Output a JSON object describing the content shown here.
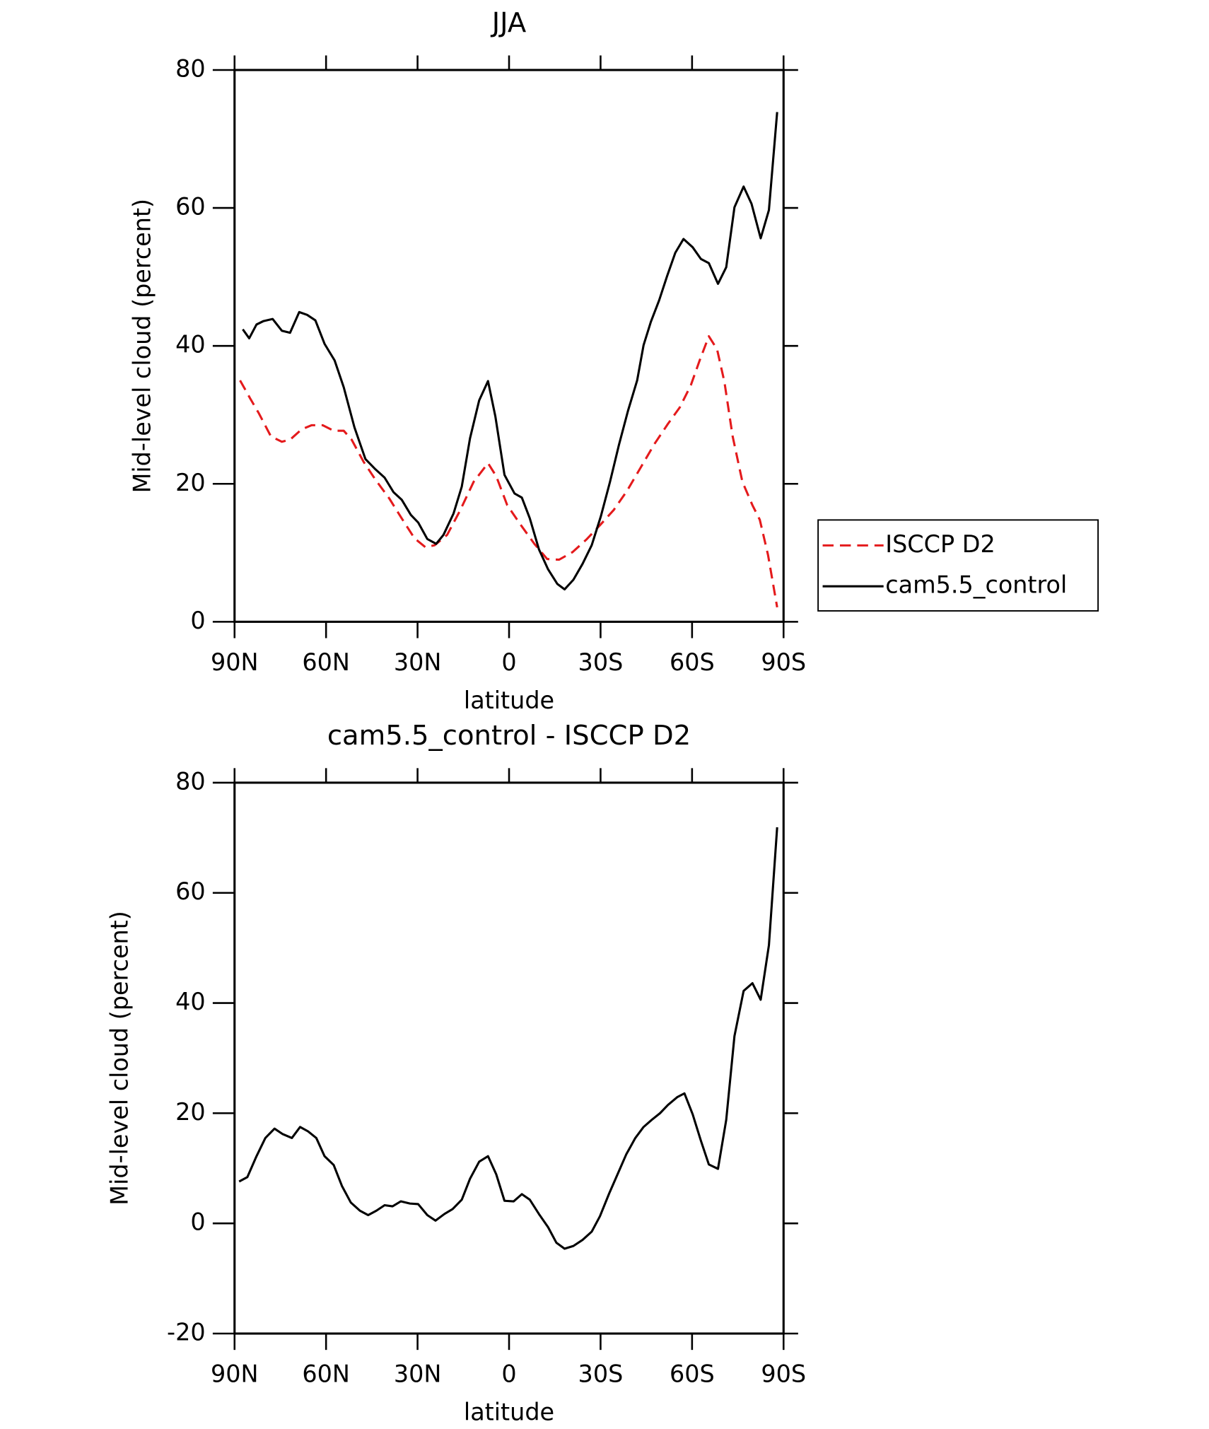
{
  "chart_data": [
    {
      "type": "line",
      "title": "JJA",
      "xlabel": "latitude",
      "ylabel": "Mid-level cloud (percent)",
      "xlim": [
        90,
        -90
      ],
      "xticks": [
        {
          "value": 90,
          "label": "90N"
        },
        {
          "value": 60,
          "label": "60N"
        },
        {
          "value": 30,
          "label": "30N"
        },
        0,
        {
          "value": -30,
          "label": "30S"
        },
        {
          "value": -60,
          "label": "60S"
        },
        {
          "value": -90,
          "label": "90S"
        }
      ],
      "ylim": [
        0,
        80
      ],
      "yticks": [
        0,
        20,
        40,
        60,
        80
      ],
      "legend": "right",
      "series": [
        {
          "name": "ISCCP D2",
          "color": "#e41a1c",
          "line_style": "dashed",
          "x": [
            88.2,
            84.9,
            82.0,
            78.1,
            74.5,
            71.8,
            68.0,
            64.7,
            61.1,
            57.5,
            54.2,
            51.6,
            47.7,
            43.8,
            39.3,
            35.2,
            31.0,
            27.4,
            24.4,
            20.3,
            16.1,
            11.6,
            6.9,
            4.2,
            0.6,
            -3.9,
            -8.3,
            -12.5,
            -16.4,
            -20.8,
            -25.3,
            -29.8,
            -34.3,
            -38.7,
            -43.2,
            -47.7,
            -52.1,
            -56.0,
            -59.6,
            -62.5,
            -65.5,
            -68.2,
            -70.6,
            -73.3,
            -76.5,
            -79.8,
            -82.2,
            -84.9,
            -87.9
          ],
          "values": [
            35.0,
            32.4,
            30.2,
            26.9,
            26.1,
            26.4,
            27.9,
            28.5,
            28.5,
            27.7,
            27.7,
            26.4,
            23.2,
            20.6,
            17.9,
            15.0,
            12.1,
            10.8,
            11.1,
            12.6,
            16.1,
            20.3,
            23.0,
            21.1,
            16.9,
            14.0,
            11.3,
            9.1,
            9.0,
            10.1,
            11.9,
            14.0,
            16.2,
            19.0,
            22.4,
            25.8,
            28.7,
            31.1,
            34.3,
            37.9,
            41.4,
            39.5,
            34.8,
            26.9,
            20.3,
            16.9,
            14.8,
            9.7,
            2.1
          ]
        },
        {
          "name": "cam5.5_control",
          "color": "#000000",
          "line_style": "solid",
          "x": [
            87.3,
            85.2,
            82.8,
            80.5,
            77.5,
            74.5,
            71.8,
            68.8,
            66.2,
            63.5,
            60.5,
            57.2,
            54.2,
            50.7,
            47.1,
            43.8,
            40.8,
            37.9,
            35.2,
            32.2,
            29.8,
            26.8,
            23.9,
            21.5,
            18.2,
            15.5,
            12.8,
            9.8,
            6.9,
            4.5,
            1.5,
            -1.8,
            -4.2,
            -6.8,
            -9.8,
            -12.8,
            -15.8,
            -18.2,
            -21.1,
            -24.1,
            -27.1,
            -30.1,
            -33.1,
            -36.0,
            -39.0,
            -42.0,
            -44.1,
            -46.5,
            -49.2,
            -51.8,
            -54.5,
            -57.2,
            -60.2,
            -62.9,
            -65.5,
            -68.5,
            -71.2,
            -73.9,
            -76.9,
            -79.5,
            -82.5,
            -85.2,
            -87.9
          ],
          "values": [
            42.4,
            41.1,
            43.1,
            43.6,
            43.9,
            42.2,
            41.9,
            44.9,
            44.5,
            43.7,
            40.3,
            37.9,
            34.0,
            28.2,
            23.6,
            22.1,
            20.9,
            18.8,
            17.7,
            15.5,
            14.4,
            12.0,
            11.3,
            12.6,
            15.7,
            19.6,
            26.6,
            32.1,
            34.9,
            29.8,
            21.3,
            18.6,
            18.0,
            15.0,
            10.5,
            7.6,
            5.5,
            4.7,
            6.1,
            8.4,
            11.1,
            15.3,
            20.3,
            25.6,
            30.6,
            35.0,
            40.1,
            43.5,
            46.6,
            50.1,
            53.5,
            55.5,
            54.3,
            52.6,
            52.0,
            49.0,
            51.4,
            60.1,
            63.1,
            60.6,
            55.6,
            59.7,
            73.9
          ]
        }
      ]
    },
    {
      "type": "line",
      "title": "cam5.5_control - ISCCP D2",
      "xlabel": "latitude",
      "ylabel": "Mid-level cloud (percent)",
      "xlim": [
        90,
        -90
      ],
      "xticks": [
        {
          "value": 90,
          "label": "90N"
        },
        {
          "value": 60,
          "label": "60N"
        },
        {
          "value": 30,
          "label": "30N"
        },
        0,
        {
          "value": -30,
          "label": "30S"
        },
        {
          "value": -60,
          "label": "60S"
        },
        {
          "value": -90,
          "label": "90S"
        }
      ],
      "ylim": [
        -20,
        80
      ],
      "yticks": [
        -20,
        0,
        20,
        40,
        60,
        80
      ],
      "color": "#000000",
      "x": [
        88.5,
        85.8,
        82.8,
        79.9,
        76.9,
        74.2,
        71.2,
        68.5,
        65.9,
        63.2,
        60.5,
        57.5,
        54.8,
        51.9,
        48.9,
        46.2,
        43.5,
        40.8,
        38.2,
        35.5,
        32.5,
        29.8,
        26.8,
        24.1,
        21.2,
        18.5,
        15.5,
        12.8,
        9.8,
        6.9,
        4.2,
        1.5,
        -1.5,
        -4.2,
        -6.8,
        -9.8,
        -12.8,
        -15.5,
        -18.2,
        -21.1,
        -24.1,
        -27.1,
        -29.8,
        -32.8,
        -35.8,
        -38.4,
        -41.4,
        -44.1,
        -46.8,
        -49.5,
        -52.1,
        -55.1,
        -57.5,
        -60.2,
        -62.9,
        -65.5,
        -68.5,
        -71.2,
        -73.9,
        -76.9,
        -79.8,
        -82.5,
        -85.2,
        -87.9
      ],
      "values": [
        7.6,
        8.4,
        12.2,
        15.5,
        17.2,
        16.2,
        15.5,
        17.5,
        16.7,
        15.5,
        12.2,
        10.6,
        6.8,
        3.8,
        2.3,
        1.5,
        2.3,
        3.3,
        3.1,
        4.0,
        3.6,
        3.5,
        1.5,
        0.5,
        1.7,
        2.6,
        4.3,
        8.1,
        11.2,
        12.2,
        8.9,
        4.1,
        4.0,
        5.3,
        4.3,
        1.7,
        -0.7,
        -3.5,
        -4.6,
        -4.1,
        -3.0,
        -1.5,
        1.3,
        5.4,
        9.2,
        12.5,
        15.5,
        17.5,
        18.8,
        20.0,
        21.5,
        22.9,
        23.6,
        19.8,
        15.0,
        10.7,
        9.9,
        18.8,
        34.0,
        42.2,
        43.6,
        40.6,
        50.5,
        71.9
      ]
    }
  ]
}
